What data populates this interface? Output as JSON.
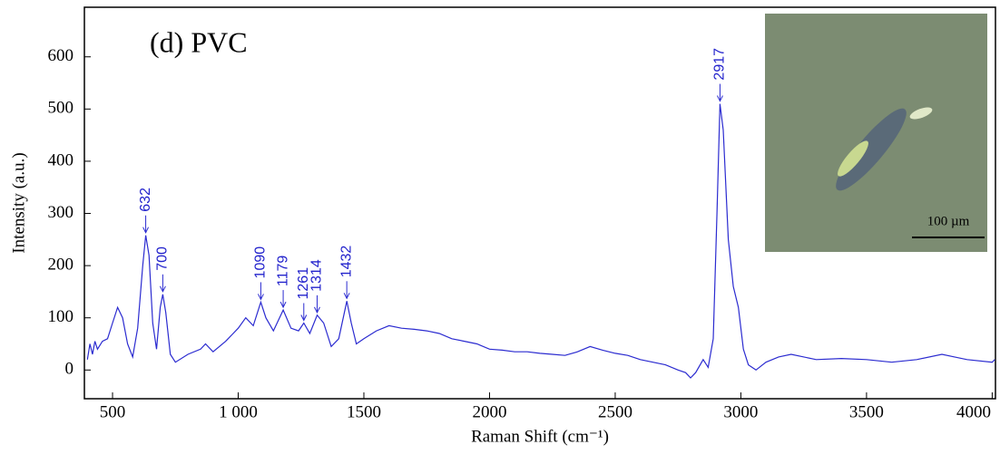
{
  "chart_data": {
    "type": "line",
    "title": "(d) PVC",
    "x_label": "Raman Shift (cm⁻¹)",
    "y_label": "Intensity (a.u.)",
    "inset_scale_label": "100 µm",
    "xlim": [
      388,
      4013
    ],
    "ylim": [
      -55,
      695
    ],
    "xticks": [
      500,
      {
        "value": 1000,
        "label": "1 000"
      },
      1500,
      2000,
      2500,
      3000,
      3500,
      4000
    ],
    "yticks": [
      0,
      100,
      200,
      300,
      400,
      500,
      600
    ],
    "color": "#2b2bd0",
    "x": [
      400,
      410,
      420,
      430,
      440,
      460,
      480,
      500,
      520,
      540,
      560,
      580,
      600,
      620,
      632,
      645,
      660,
      675,
      690,
      700,
      712,
      730,
      750,
      800,
      850,
      870,
      900,
      950,
      1000,
      1030,
      1060,
      1090,
      1110,
      1140,
      1179,
      1210,
      1240,
      1261,
      1285,
      1314,
      1340,
      1370,
      1400,
      1432,
      1450,
      1470,
      1500,
      1550,
      1600,
      1650,
      1700,
      1750,
      1800,
      1850,
      1900,
      1950,
      2000,
      2050,
      2100,
      2150,
      2200,
      2250,
      2300,
      2350,
      2400,
      2450,
      2500,
      2550,
      2600,
      2650,
      2700,
      2750,
      2780,
      2800,
      2820,
      2850,
      2870,
      2890,
      2905,
      2917,
      2930,
      2950,
      2970,
      2990,
      3010,
      3030,
      3060,
      3100,
      3150,
      3200,
      3300,
      3400,
      3500,
      3600,
      3700,
      3800,
      3850,
      3900,
      4000,
      4010
    ],
    "values": [
      20,
      50,
      30,
      55,
      40,
      55,
      60,
      90,
      120,
      100,
      50,
      25,
      80,
      200,
      258,
      220,
      90,
      40,
      120,
      145,
      110,
      30,
      15,
      30,
      40,
      50,
      35,
      55,
      80,
      100,
      85,
      130,
      100,
      75,
      115,
      80,
      75,
      90,
      70,
      105,
      90,
      45,
      60,
      132,
      90,
      50,
      60,
      75,
      85,
      80,
      78,
      75,
      70,
      60,
      55,
      50,
      40,
      38,
      35,
      35,
      32,
      30,
      28,
      35,
      45,
      38,
      32,
      28,
      20,
      15,
      10,
      0,
      -5,
      -15,
      -5,
      20,
      5,
      60,
      300,
      510,
      460,
      250,
      160,
      120,
      40,
      10,
      0,
      15,
      25,
      30,
      20,
      22,
      20,
      15,
      20,
      30,
      25,
      20,
      15,
      20
    ],
    "annotations": [
      {
        "x": 632,
        "y": 258
      },
      {
        "x": 700,
        "y": 145
      },
      {
        "x": 1090,
        "y": 130
      },
      {
        "x": 1179,
        "y": 115
      },
      {
        "x": 1261,
        "y": 90
      },
      {
        "x": 1314,
        "y": 105
      },
      {
        "x": 1432,
        "y": 132
      },
      {
        "x": 2917,
        "y": 510
      }
    ]
  }
}
